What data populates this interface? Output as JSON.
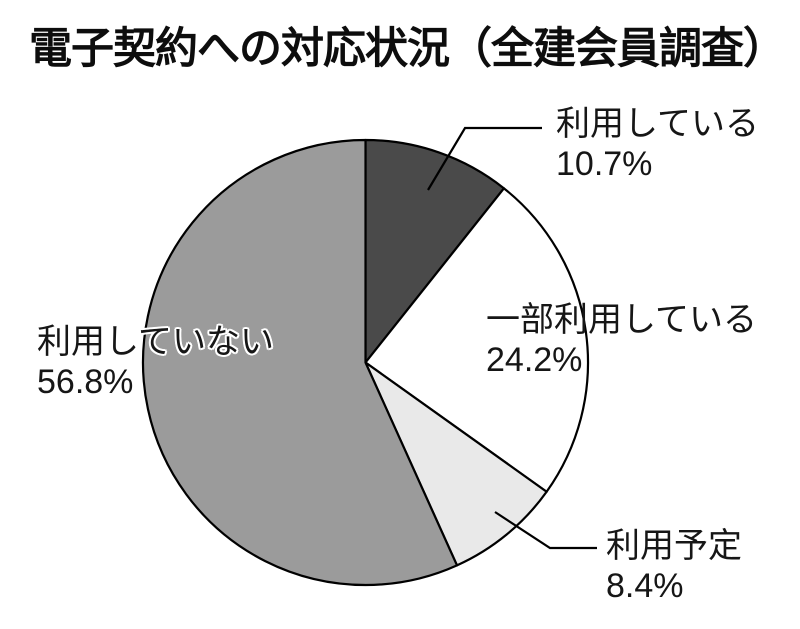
{
  "chart_data": {
    "type": "pie",
    "title": "電子契約への対応状況（全建会員調査）",
    "unit": "%",
    "start_angle": "12-oclock",
    "direction": "clockwise",
    "outline_color": "#000000",
    "background_color": "#ffffff",
    "segments": [
      {
        "label": "利用している",
        "value": 10.7,
        "value_label": "10.7%",
        "color": "#4a4a4a"
      },
      {
        "label": "一部利用している",
        "value": 24.2,
        "value_label": "24.2%",
        "color": "#ffffff"
      },
      {
        "label": "利用予定",
        "value": 8.4,
        "value_label": "8.4%",
        "color": "#e9e9e9"
      },
      {
        "label": "利用していない",
        "value": 56.8,
        "value_label": "56.8%",
        "color": "#9b9b9b"
      }
    ]
  }
}
